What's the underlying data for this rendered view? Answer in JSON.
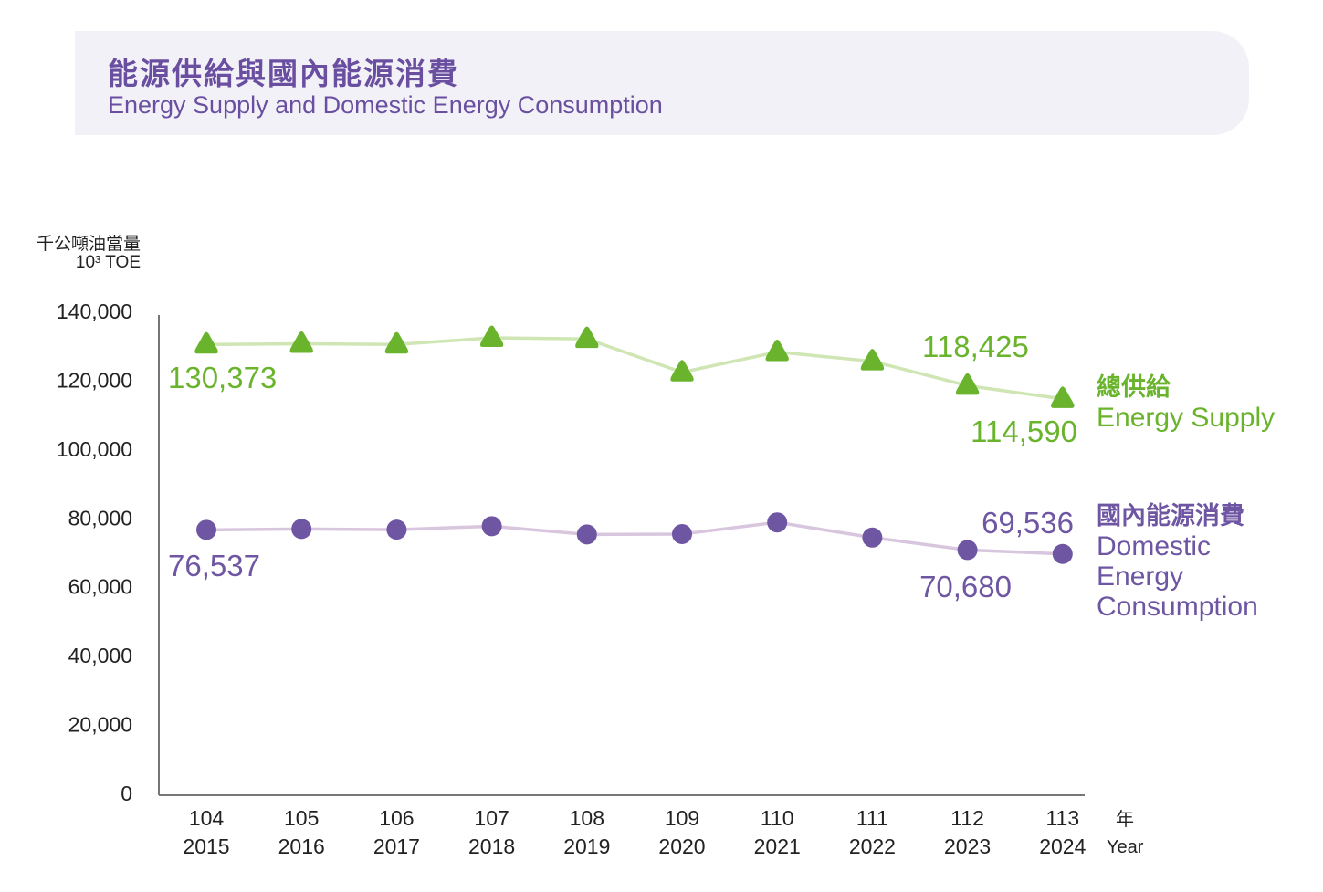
{
  "header": {
    "title_zh": "能源供給與國內能源消費",
    "title_en": "Energy Supply and Domestic Energy Consumption"
  },
  "chart_data": {
    "type": "line",
    "title": "能源供給與國內能源消費 Energy Supply and Domestic Energy Consumption",
    "ylabel_zh": "千公噸油當量",
    "ylabel_en": "10³ TOE",
    "xlabel_zh": "年",
    "xlabel_en": "Year",
    "ylim": [
      0,
      140000
    ],
    "yticks": [
      "0",
      "20,000",
      "40,000",
      "60,000",
      "80,000",
      "100,000",
      "120,000",
      "140,000"
    ],
    "categories": [
      [
        "104",
        "2015"
      ],
      [
        "105",
        "2016"
      ],
      [
        "106",
        "2017"
      ],
      [
        "107",
        "2018"
      ],
      [
        "108",
        "2019"
      ],
      [
        "109",
        "2020"
      ],
      [
        "110",
        "2021"
      ],
      [
        "111",
        "2022"
      ],
      [
        "112",
        "2023"
      ],
      [
        "113",
        "2024"
      ]
    ],
    "grid": false,
    "series": [
      {
        "name_zh": "總供給",
        "name_en": "Energy Supply",
        "color": "#6ab42d",
        "line_color": "#cfe6b4",
        "marker": "triangle",
        "values": [
          130373,
          130600,
          130400,
          132300,
          132000,
          122300,
          128200,
          125500,
          118425,
          114590
        ],
        "labels": {
          "0": "130,373",
          "8": "118,425",
          "9": "114,590"
        }
      },
      {
        "name_zh": "國內能源消費",
        "name_en": "Domestic Energy Consumption",
        "color": "#6e56a3",
        "line_color": "#d8c6de",
        "marker": "circle",
        "values": [
          76537,
          76800,
          76600,
          77600,
          75200,
          75300,
          78700,
          74300,
          70680,
          69536
        ],
        "labels": {
          "0": "76,537",
          "8": "70,680",
          "9": "69,536"
        }
      }
    ]
  }
}
